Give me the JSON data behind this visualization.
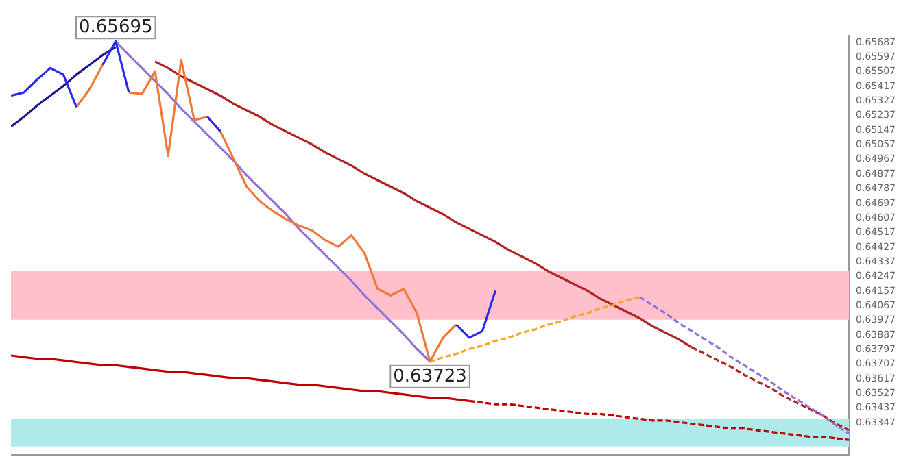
{
  "chart_data": {
    "type": "line",
    "ylim": [
      0.6315,
      0.6573
    ],
    "yticks": [
      0.63347,
      0.63437,
      0.63527,
      0.63617,
      0.63707,
      0.63797,
      0.63887,
      0.63977,
      0.64067,
      0.64157,
      0.64247,
      0.64337,
      0.64427,
      0.64517,
      0.64607,
      0.64697,
      0.64787,
      0.64877,
      0.64967,
      0.65057,
      0.65147,
      0.65237,
      0.65327,
      0.65417,
      0.65507,
      0.65597,
      0.65687
    ],
    "tick_labels": "y",
    "grid": false,
    "legend": false,
    "marker": "none",
    "line_style": "solid",
    "categories": [
      null,
      null,
      null,
      null,
      null,
      null,
      null,
      null,
      null,
      null,
      null,
      null,
      null,
      null,
      null,
      null,
      null,
      null,
      null,
      null,
      null,
      null,
      null,
      null,
      null,
      null,
      null,
      null,
      null,
      null,
      null,
      null,
      null,
      null,
      null,
      null,
      null,
      null,
      null,
      null,
      null,
      null,
      null,
      null,
      null,
      null,
      null,
      null,
      null,
      null,
      null,
      null,
      null,
      null,
      null,
      null,
      null,
      null,
      null,
      null,
      null,
      null,
      null,
      null,
      null
    ],
    "bands": [
      {
        "axis": "y",
        "from": 0.6398,
        "to": 0.6428,
        "color": "#ffc0cb"
      },
      {
        "axis": "y",
        "from": 0.632,
        "to": 0.6337,
        "color": "#aeeaea"
      }
    ],
    "annotations": [
      "0.65695",
      "0.63723"
    ],
    "series": [
      {
        "color": "#2a2af0",
        "values": [
          0.6536,
          0.6538,
          0.6546,
          0.6553,
          0.6549,
          0.6529,
          null,
          0.6555,
          0.65695,
          0.6538,
          null,
          null,
          null,
          null,
          null,
          0.6523,
          0.6514,
          null,
          null,
          null,
          null,
          null,
          null,
          null,
          null,
          null,
          null,
          null,
          null,
          null,
          null,
          null,
          null,
          null,
          0.6395,
          0.6387,
          0.6391,
          0.6416,
          null,
          null,
          null,
          null,
          null,
          null,
          null,
          null,
          null,
          null,
          null,
          null,
          null,
          null,
          null,
          null,
          null,
          null,
          null,
          null,
          null,
          null,
          null,
          null,
          null,
          null,
          null
        ]
      },
      {
        "color": "#f07838",
        "values": [
          null,
          null,
          null,
          null,
          null,
          0.6529,
          0.654,
          0.6555,
          null,
          0.6538,
          0.6537,
          0.6551,
          0.6499,
          0.6558,
          0.6521,
          0.6523,
          0.6514,
          0.6497,
          0.648,
          0.6471,
          0.6465,
          0.646,
          0.6456,
          0.6453,
          0.6447,
          0.6443,
          0.645,
          0.6439,
          0.6417,
          0.6413,
          0.6417,
          0.6402,
          0.63723,
          0.6387,
          0.6395,
          null,
          null,
          null,
          null,
          null,
          null,
          null,
          null,
          null,
          null,
          null,
          null,
          null,
          null,
          null,
          null,
          null,
          null,
          null,
          null,
          null,
          null,
          null,
          null,
          null,
          null,
          null,
          null,
          null,
          null
        ]
      },
      {
        "color": "#1a1a8c",
        "values": [
          0.6517,
          0.6523,
          0.653,
          0.6536,
          0.6542,
          0.6549,
          0.6555,
          0.6561,
          0.6566,
          null,
          null,
          null,
          null,
          null,
          null,
          null,
          null,
          null,
          null,
          null,
          null,
          null,
          null,
          null,
          null,
          null,
          null,
          null,
          null,
          null,
          null,
          null,
          null,
          null,
          null,
          null,
          null,
          null,
          null,
          null,
          null,
          null,
          null,
          null,
          null,
          null,
          null,
          null,
          null,
          null,
          null,
          null,
          null,
          null,
          null,
          null,
          null,
          null,
          null,
          null,
          null,
          null,
          null,
          null,
          null
        ]
      },
      {
        "color": "#9370db",
        "values": [
          null,
          null,
          null,
          null,
          null,
          null,
          null,
          null,
          0.65695,
          0.6561,
          0.6553,
          0.6545,
          0.6537,
          0.6528,
          0.652,
          0.6512,
          0.6504,
          0.6496,
          0.6487,
          0.6479,
          0.6471,
          0.6463,
          0.6454,
          0.6446,
          0.6438,
          0.643,
          0.6422,
          0.6413,
          0.6405,
          0.6397,
          0.6389,
          0.638,
          0.63723,
          null,
          null,
          null,
          null,
          null,
          null,
          null,
          null,
          null,
          null,
          null,
          null,
          null,
          null,
          null,
          null,
          null,
          null,
          null,
          null,
          null,
          null,
          null,
          null,
          null,
          null,
          null,
          null,
          null,
          null,
          null,
          null
        ]
      },
      {
        "color": "#f5a623",
        "line_style": "dashed",
        "values": [
          null,
          null,
          null,
          null,
          null,
          null,
          null,
          null,
          null,
          null,
          null,
          null,
          null,
          null,
          null,
          null,
          null,
          null,
          null,
          null,
          null,
          null,
          null,
          null,
          null,
          null,
          null,
          null,
          null,
          null,
          null,
          null,
          0.6372,
          0.6375,
          0.6377,
          0.638,
          0.6382,
          0.6385,
          0.6387,
          0.639,
          0.6392,
          0.6395,
          0.6397,
          0.64,
          0.6402,
          0.6405,
          0.6407,
          0.641,
          0.6412,
          null,
          null,
          null,
          null,
          null,
          null,
          null,
          null,
          null,
          null,
          null,
          null,
          null,
          null,
          null,
          null
        ]
      },
      {
        "color": "#9370db",
        "line_style": "dashed",
        "values": [
          null,
          null,
          null,
          null,
          null,
          null,
          null,
          null,
          null,
          null,
          null,
          null,
          null,
          null,
          null,
          null,
          null,
          null,
          null,
          null,
          null,
          null,
          null,
          null,
          null,
          null,
          null,
          null,
          null,
          null,
          null,
          null,
          null,
          null,
          null,
          null,
          null,
          null,
          null,
          null,
          null,
          null,
          null,
          null,
          null,
          null,
          null,
          null,
          0.6412,
          0.6407,
          0.6402,
          0.6396,
          0.6391,
          0.6386,
          0.6381,
          0.6375,
          0.637,
          0.6365,
          0.636,
          0.6354,
          0.6349,
          0.6344,
          0.6339,
          0.6333,
          0.6328
        ]
      },
      {
        "color": "#b22222",
        "values": [
          null,
          null,
          null,
          null,
          null,
          null,
          null,
          null,
          null,
          null,
          null,
          0.6557,
          0.6553,
          0.6548,
          0.6544,
          0.654,
          0.6536,
          0.6531,
          0.6527,
          0.6523,
          0.6518,
          0.6514,
          0.651,
          0.6506,
          0.6501,
          0.6497,
          0.6493,
          0.6488,
          0.6484,
          0.648,
          0.6476,
          0.6471,
          0.6467,
          0.6463,
          0.6458,
          0.6454,
          0.645,
          0.6446,
          0.6441,
          0.6437,
          0.6433,
          0.6428,
          0.6424,
          0.642,
          0.6416,
          0.6411,
          0.6407,
          0.6403,
          0.6399,
          0.6394,
          0.639,
          0.6386,
          0.6381,
          null,
          null,
          null,
          null,
          null,
          null,
          null,
          null,
          null,
          null,
          null,
          null
        ]
      },
      {
        "color": "#b22222",
        "line_style": "dashed",
        "values": [
          null,
          null,
          null,
          null,
          null,
          null,
          null,
          null,
          null,
          null,
          null,
          null,
          null,
          null,
          null,
          null,
          null,
          null,
          null,
          null,
          null,
          null,
          null,
          null,
          null,
          null,
          null,
          null,
          null,
          null,
          null,
          null,
          null,
          null,
          null,
          null,
          null,
          null,
          null,
          null,
          null,
          null,
          null,
          null,
          null,
          null,
          null,
          null,
          null,
          null,
          null,
          null,
          0.6381,
          0.6377,
          0.6373,
          0.6369,
          0.6364,
          0.636,
          0.6356,
          0.6351,
          0.6347,
          0.6343,
          0.6339,
          0.6334,
          0.633
        ]
      },
      {
        "color": "#c00000",
        "values": [
          0.6376,
          0.6375,
          0.6374,
          0.6374,
          0.6373,
          0.6372,
          0.6371,
          0.637,
          0.637,
          0.6369,
          0.6368,
          0.6367,
          0.6366,
          0.6366,
          0.6365,
          0.6364,
          0.6363,
          0.6362,
          0.6362,
          0.6361,
          0.636,
          0.6359,
          0.6358,
          0.6358,
          0.6357,
          0.6356,
          0.6355,
          0.6354,
          0.6354,
          0.6353,
          0.6352,
          0.6351,
          0.635,
          0.635,
          0.6349,
          0.6348,
          null,
          null,
          null,
          null,
          null,
          null,
          null,
          null,
          null,
          null,
          null,
          null,
          null,
          null,
          null,
          null,
          null,
          null,
          null,
          null,
          null,
          null,
          null,
          null,
          null,
          null,
          null,
          null,
          null
        ]
      },
      {
        "color": "#c00000",
        "line_style": "dashed",
        "values": [
          null,
          null,
          null,
          null,
          null,
          null,
          null,
          null,
          null,
          null,
          null,
          null,
          null,
          null,
          null,
          null,
          null,
          null,
          null,
          null,
          null,
          null,
          null,
          null,
          null,
          null,
          null,
          null,
          null,
          null,
          null,
          null,
          null,
          null,
          null,
          0.6348,
          0.6347,
          0.6346,
          0.6346,
          0.6345,
          0.6344,
          0.6343,
          0.6342,
          0.6341,
          0.634,
          0.634,
          0.6339,
          0.6338,
          0.6337,
          0.6336,
          0.6336,
          0.6335,
          0.6334,
          0.6333,
          0.6332,
          0.6331,
          0.6331,
          0.633,
          0.6329,
          0.6328,
          0.6327,
          0.6326,
          0.6326,
          0.6325,
          0.6324
        ]
      }
    ]
  }
}
